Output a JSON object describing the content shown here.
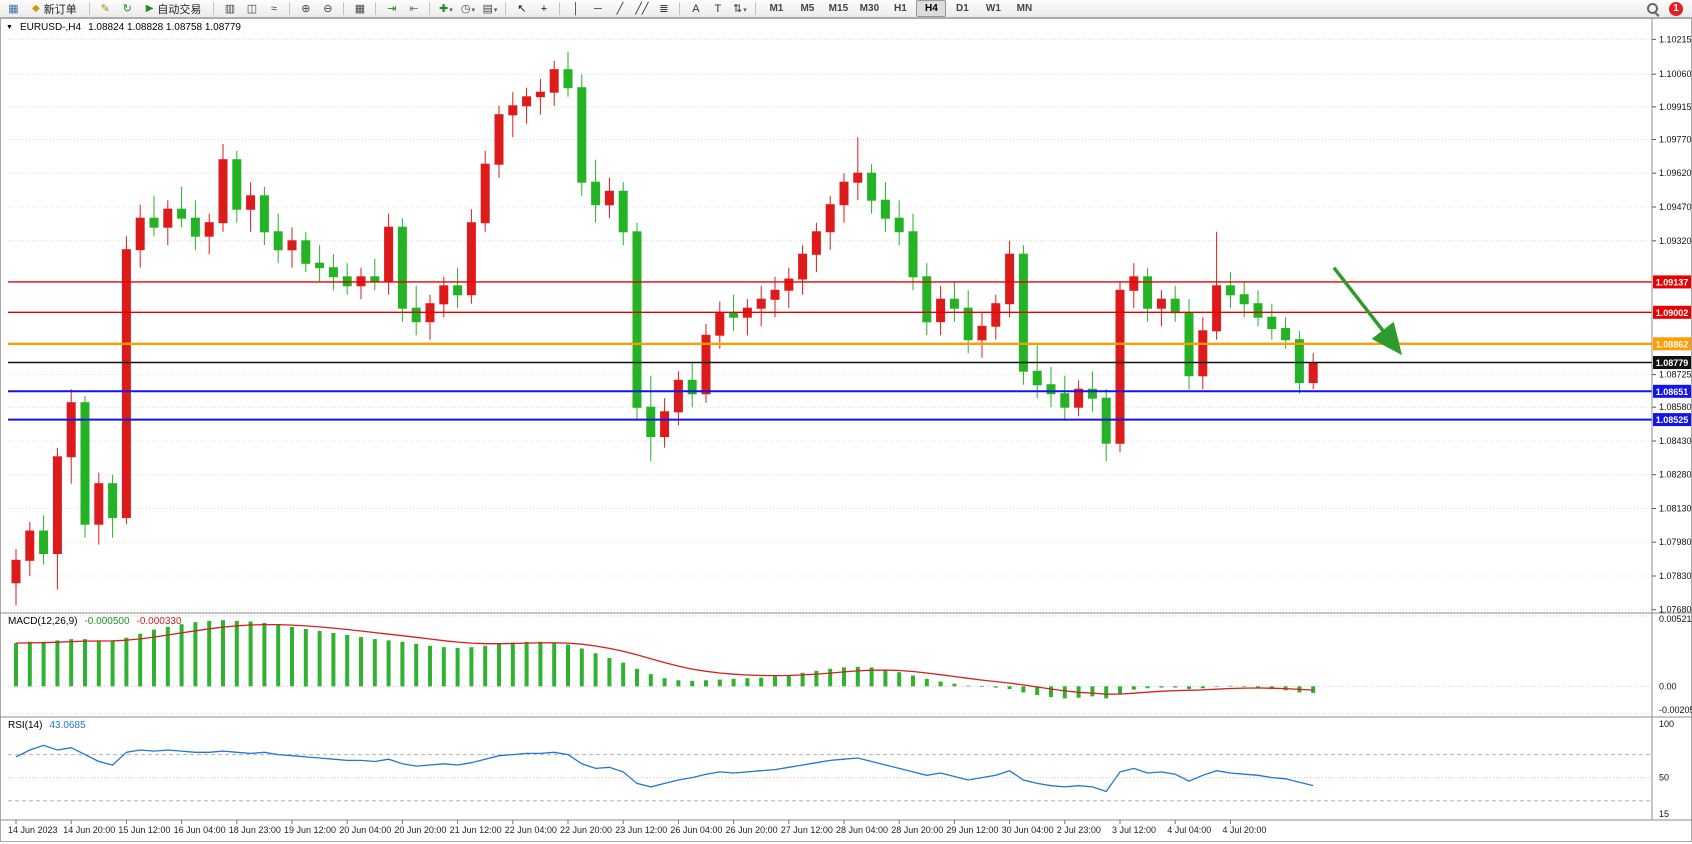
{
  "toolbar": {
    "items": [
      {
        "t": "icon",
        "name": "new-chart-icon"
      },
      {
        "t": "button",
        "name": "new-order-button",
        "label": "新订单",
        "icon": "order-icon"
      },
      {
        "t": "sep"
      },
      {
        "t": "icon",
        "name": "metaeditor-icon"
      },
      {
        "t": "icon",
        "name": "refresh-icon"
      },
      {
        "t": "button",
        "name": "autotrade-button",
        "label": "自动交易",
        "icon": "play-icon"
      },
      {
        "t": "sep"
      },
      {
        "t": "icon",
        "name": "bar-chart-icon"
      },
      {
        "t": "icon",
        "name": "candlestick-chart-icon"
      },
      {
        "t": "icon",
        "name": "line-chart-icon"
      },
      {
        "t": "sep"
      },
      {
        "t": "icon",
        "name": "zoom-in-icon"
      },
      {
        "t": "icon",
        "name": "zoom-out-icon"
      },
      {
        "t": "sep"
      },
      {
        "t": "icon",
        "name": "tile-windows-icon"
      },
      {
        "t": "sep"
      },
      {
        "t": "icon",
        "name": "autoscroll-icon"
      },
      {
        "t": "icon",
        "name": "chart-shift-icon"
      },
      {
        "t": "sep"
      },
      {
        "t": "icon",
        "name": "indicators-icon",
        "caret": true
      },
      {
        "t": "icon",
        "name": "periods-icon",
        "caret": true
      },
      {
        "t": "icon",
        "name": "templates-icon",
        "caret": true
      },
      {
        "t": "sep"
      },
      {
        "t": "icon",
        "name": "cursor-icon"
      },
      {
        "t": "icon",
        "name": "crosshair-icon"
      },
      {
        "t": "sep"
      },
      {
        "t": "icon",
        "name": "vertical-line-icon"
      },
      {
        "t": "icon",
        "name": "horizontal-line-icon"
      },
      {
        "t": "icon",
        "name": "trendline-icon"
      },
      {
        "t": "icon",
        "name": "channel-icon"
      },
      {
        "t": "icon",
        "name": "fibonacci-icon"
      },
      {
        "t": "sep"
      },
      {
        "t": "icon",
        "name": "text-icon"
      },
      {
        "t": "icon",
        "name": "text-label-icon"
      },
      {
        "t": "icon",
        "name": "arrows-icon",
        "caret": true
      },
      {
        "t": "sep"
      }
    ],
    "timeframes": [
      "M1",
      "M5",
      "M15",
      "M30",
      "H1",
      "H4",
      "D1",
      "W1",
      "MN"
    ],
    "active_timeframe": "H4",
    "notification_count": "1"
  },
  "chart_data": [
    {
      "type": "candlestick",
      "symbol_period": "EURUSD-,H4",
      "ohlc_line": "1.08824 1.08828 1.08758 1.08779",
      "up_color": "#DE1B1B",
      "down_color": "#24B324",
      "bars_per_label": 4,
      "x_labels": [
        "14 Jun 2023",
        "14 Jun 20:00",
        "15 Jun 12:00",
        "16 Jun 04:00",
        "18 Jun 23:00",
        "19 Jun 12:00",
        "20 Jun 04:00",
        "20 Jun 20:00",
        "21 Jun 12:00",
        "22 Jun 04:00",
        "22 Jun 20:00",
        "23 Jun 12:00",
        "26 Jun 04:00",
        "26 Jun 20:00",
        "27 Jun 12:00",
        "28 Jun 04:00",
        "28 Jun 20:00",
        "29 Jun 12:00",
        "30 Jun 04:00",
        "2 Jul 23:00",
        "3 Jul 12:00",
        "4 Jul 04:00",
        "4 Jul 20:00"
      ],
      "y_axis_labels": [
        "1.10215",
        "1.10060",
        "1.09915",
        "1.09770",
        "1.09620",
        "1.09470",
        "1.09320",
        "1.08725",
        "1.08580",
        "1.08430",
        "1.08280",
        "1.08130",
        "1.07980",
        "1.07830",
        "1.07680"
      ],
      "levels": [
        {
          "price": 1.09137,
          "label": "1.09137",
          "color": "#E80000",
          "width": 1.4
        },
        {
          "price": 1.09002,
          "label": "1.09002",
          "color": "#E80000",
          "width": 1.4
        },
        {
          "price": 1.08862,
          "label": "1.08862",
          "color": "#FF9C00",
          "width": 2.4
        },
        {
          "price": 1.08779,
          "label": "1.08779",
          "color": "#111111",
          "width": 1.4,
          "current": true
        },
        {
          "price": 1.08651,
          "label": "1.08651",
          "color": "#1414E8",
          "width": 2
        },
        {
          "price": 1.08525,
          "label": "1.08525",
          "color": "#1414E8",
          "width": 2
        }
      ],
      "annotation_arrow": {
        "from_bar": 95.5,
        "from_price": 1.092,
        "to_bar": 100.2,
        "to_price": 1.0883,
        "color": "#2E9B2E"
      },
      "candles": [
        [
          1.078,
          1.0795,
          1.077,
          1.079
        ],
        [
          1.079,
          1.0807,
          1.0783,
          1.0803
        ],
        [
          1.0803,
          1.081,
          1.0788,
          1.0793
        ],
        [
          1.0793,
          1.084,
          1.0777,
          1.0836
        ],
        [
          1.0836,
          1.0866,
          1.0824,
          1.086
        ],
        [
          1.086,
          1.0863,
          1.08,
          1.0806
        ],
        [
          1.0806,
          1.0829,
          1.0797,
          1.0824
        ],
        [
          1.0824,
          1.0828,
          1.08,
          1.0809
        ],
        [
          1.0809,
          1.0934,
          1.0806,
          1.0928
        ],
        [
          1.0928,
          1.0948,
          1.092,
          1.0942
        ],
        [
          1.0942,
          1.0952,
          1.0934,
          1.0938
        ],
        [
          1.0938,
          1.095,
          1.093,
          1.0946
        ],
        [
          1.0946,
          1.0956,
          1.0938,
          1.0942
        ],
        [
          1.0942,
          1.095,
          1.0928,
          1.0934
        ],
        [
          1.0934,
          1.0944,
          1.0926,
          1.094
        ],
        [
          1.094,
          1.0975,
          1.0936,
          1.0968
        ],
        [
          1.0968,
          1.0972,
          1.094,
          1.0946
        ],
        [
          1.0946,
          1.0958,
          1.0936,
          1.0952
        ],
        [
          1.0952,
          1.0956,
          1.093,
          1.0936
        ],
        [
          1.0936,
          1.0944,
          1.0922,
          1.0928
        ],
        [
          1.0928,
          1.0938,
          1.092,
          1.0932
        ],
        [
          1.0932,
          1.0936,
          1.0918,
          1.0922
        ],
        [
          1.0922,
          1.093,
          1.0914,
          1.092
        ],
        [
          1.092,
          1.0926,
          1.091,
          1.0916
        ],
        [
          1.0916,
          1.0922,
          1.0908,
          1.0912
        ],
        [
          1.0912,
          1.092,
          1.0906,
          1.0916
        ],
        [
          1.0916,
          1.0924,
          1.091,
          1.0914
        ],
        [
          1.0914,
          1.0944,
          1.0908,
          1.0938
        ],
        [
          1.0938,
          1.0942,
          1.0896,
          1.0902
        ],
        [
          1.0902,
          1.0912,
          1.089,
          1.0896
        ],
        [
          1.0896,
          1.0908,
          1.0888,
          1.0904
        ],
        [
          1.0904,
          1.0916,
          1.0898,
          1.0912
        ],
        [
          1.0912,
          1.092,
          1.0902,
          1.0908
        ],
        [
          1.0908,
          1.0946,
          1.0904,
          1.094
        ],
        [
          1.094,
          1.0972,
          1.0936,
          1.0966
        ],
        [
          1.0966,
          1.0992,
          1.096,
          1.0988
        ],
        [
          1.0988,
          1.0998,
          1.0978,
          1.0992
        ],
        [
          1.0992,
          1.1,
          1.0984,
          1.0996
        ],
        [
          1.0996,
          1.1004,
          1.0988,
          1.0998
        ],
        [
          1.0998,
          1.1012,
          1.0992,
          1.1008
        ],
        [
          1.1008,
          1.1016,
          1.0996,
          1.1
        ],
        [
          1.1,
          1.1006,
          1.0952,
          1.0958
        ],
        [
          1.0958,
          1.0968,
          1.094,
          1.0948
        ],
        [
          1.0948,
          1.096,
          1.0942,
          1.0954
        ],
        [
          1.0954,
          1.0958,
          1.093,
          1.0936
        ],
        [
          1.0936,
          1.094,
          1.0852,
          1.0858
        ],
        [
          1.0858,
          1.0872,
          1.0834,
          1.0845
        ],
        [
          1.0845,
          1.0862,
          1.084,
          1.0856
        ],
        [
          1.0856,
          1.0874,
          1.085,
          1.087
        ],
        [
          1.087,
          1.0878,
          1.0858,
          1.0864
        ],
        [
          1.0864,
          1.0895,
          1.086,
          1.089
        ],
        [
          1.089,
          1.0905,
          1.0884,
          1.09
        ],
        [
          1.09,
          1.0908,
          1.0892,
          1.0898
        ],
        [
          1.0898,
          1.0906,
          1.089,
          1.0902
        ],
        [
          1.0902,
          1.0912,
          1.0894,
          1.0906
        ],
        [
          1.0906,
          1.0916,
          1.0898,
          1.091
        ],
        [
          1.091,
          1.092,
          1.0902,
          1.0915
        ],
        [
          1.0915,
          1.093,
          1.0908,
          1.0926
        ],
        [
          1.0926,
          1.094,
          1.0918,
          1.0936
        ],
        [
          1.0936,
          1.0952,
          1.0928,
          1.0948
        ],
        [
          1.0948,
          1.0962,
          1.094,
          1.0958
        ],
        [
          1.0958,
          1.0978,
          1.095,
          1.0962
        ],
        [
          1.0962,
          1.0966,
          1.0944,
          1.095
        ],
        [
          1.095,
          1.0958,
          1.0936,
          1.0942
        ],
        [
          1.0942,
          1.095,
          1.093,
          1.0936
        ],
        [
          1.0936,
          1.0944,
          1.091,
          1.0916
        ],
        [
          1.0916,
          1.0922,
          1.089,
          1.0896
        ],
        [
          1.0896,
          1.0912,
          1.089,
          1.0906
        ],
        [
          1.0906,
          1.0914,
          1.0896,
          1.0902
        ],
        [
          1.0902,
          1.091,
          1.0882,
          1.0888
        ],
        [
          1.0888,
          1.09,
          1.088,
          1.0894
        ],
        [
          1.0894,
          1.0908,
          1.0888,
          1.0904
        ],
        [
          1.0904,
          1.0932,
          1.0898,
          1.0926
        ],
        [
          1.0926,
          1.093,
          1.0868,
          1.0874
        ],
        [
          1.0874,
          1.0886,
          1.0862,
          1.0868
        ],
        [
          1.0868,
          1.0876,
          1.0858,
          1.0864
        ],
        [
          1.0864,
          1.0872,
          1.0852,
          1.0858
        ],
        [
          1.0858,
          1.087,
          1.0854,
          1.0866
        ],
        [
          1.0866,
          1.0874,
          1.0856,
          1.0862
        ],
        [
          1.0862,
          1.0866,
          1.0834,
          1.0842
        ],
        [
          1.0842,
          1.0914,
          1.0838,
          1.091
        ],
        [
          1.091,
          1.0922,
          1.0902,
          1.0916
        ],
        [
          1.0916,
          1.092,
          1.0896,
          1.0902
        ],
        [
          1.0902,
          1.091,
          1.0894,
          1.0906
        ],
        [
          1.0906,
          1.0912,
          1.0896,
          1.09
        ],
        [
          1.09,
          1.0906,
          1.0866,
          1.0872
        ],
        [
          1.0872,
          1.0898,
          1.0866,
          1.0892
        ],
        [
          1.0892,
          1.0936,
          1.0888,
          1.0912
        ],
        [
          1.0912,
          1.0918,
          1.0902,
          1.0908
        ],
        [
          1.0908,
          1.0914,
          1.0898,
          1.0904
        ],
        [
          1.0904,
          1.091,
          1.0894,
          1.0898
        ],
        [
          1.0898,
          1.0904,
          1.0888,
          1.0893
        ],
        [
          1.0893,
          1.0898,
          1.0884,
          1.0888
        ],
        [
          1.0888,
          1.0892,
          1.0864,
          1.0869
        ],
        [
          1.0869,
          1.0882,
          1.0866,
          1.08779
        ]
      ]
    },
    {
      "type": "bar",
      "label": "MACD(12,26,9)",
      "value_main": "-0.000500",
      "value_signal": "-0.000330",
      "scale_labels": [
        "0.005211",
        "0.00",
        "-0.00205"
      ],
      "ylim": [
        -0.00205,
        0.005211
      ],
      "histogram_color": "#2FB32F",
      "signal_color": "#D51F1F",
      "histogram": [
        0.0032,
        0.0033,
        0.0033,
        0.0034,
        0.0035,
        0.0035,
        0.0034,
        0.0034,
        0.0036,
        0.0039,
        0.0042,
        0.0044,
        0.0046,
        0.00475,
        0.00485,
        0.0049,
        0.00485,
        0.0048,
        0.0047,
        0.00455,
        0.0044,
        0.00425,
        0.0041,
        0.00395,
        0.0038,
        0.00365,
        0.0035,
        0.0034,
        0.0033,
        0.00315,
        0.003,
        0.0029,
        0.00285,
        0.0029,
        0.003,
        0.00315,
        0.00325,
        0.0033,
        0.0033,
        0.00325,
        0.0031,
        0.0028,
        0.00245,
        0.0021,
        0.00175,
        0.0013,
        0.0009,
        0.0006,
        0.00045,
        0.0004,
        0.00045,
        0.0005,
        0.00055,
        0.0006,
        0.00065,
        0.00075,
        0.00085,
        0.001,
        0.00115,
        0.0013,
        0.0014,
        0.00145,
        0.0014,
        0.00125,
        0.00105,
        0.0008,
        0.00055,
        0.00035,
        0.0002,
        5e-05,
        -5e-05,
        -0.0001,
        -0.0002,
        -0.00045,
        -0.00065,
        -0.0008,
        -0.0009,
        -0.00085,
        -0.00075,
        -0.0009,
        -0.00055,
        -0.00025,
        -0.00015,
        -0.0001,
        -0.0001,
        -0.0002,
        -0.00015,
        0.0,
        5e-05,
        0.0,
        -0.0001,
        -0.0002,
        -0.0003,
        -0.00045,
        -0.0005
      ]
    },
    {
      "type": "line",
      "label": "RSI(14)",
      "value": "43.0685",
      "scale_labels": [
        "100",
        "50",
        "15"
      ],
      "level_lines": [
        70,
        50,
        30
      ],
      "ylim": [
        15,
        100
      ],
      "line_color": "#2277CC",
      "values": [
        68,
        74,
        78,
        74,
        76,
        70,
        64,
        61,
        72,
        74,
        73,
        74,
        73,
        72,
        72,
        73,
        72,
        71,
        72,
        70,
        69,
        68,
        67,
        66,
        65,
        65,
        64,
        66,
        62,
        60,
        61,
        62,
        61,
        63,
        66,
        69,
        70,
        71,
        71,
        72,
        70,
        62,
        58,
        59,
        55,
        45,
        42,
        45,
        48,
        50,
        53,
        55,
        54,
        55,
        56,
        57,
        59,
        61,
        63,
        65,
        66,
        67,
        64,
        61,
        58,
        55,
        52,
        54,
        51,
        48,
        50,
        52,
        56,
        48,
        45,
        43,
        42,
        43,
        42,
        38,
        55,
        58,
        54,
        55,
        53,
        47,
        52,
        56,
        54,
        53,
        52,
        50,
        49,
        46,
        43.0685
      ]
    }
  ]
}
